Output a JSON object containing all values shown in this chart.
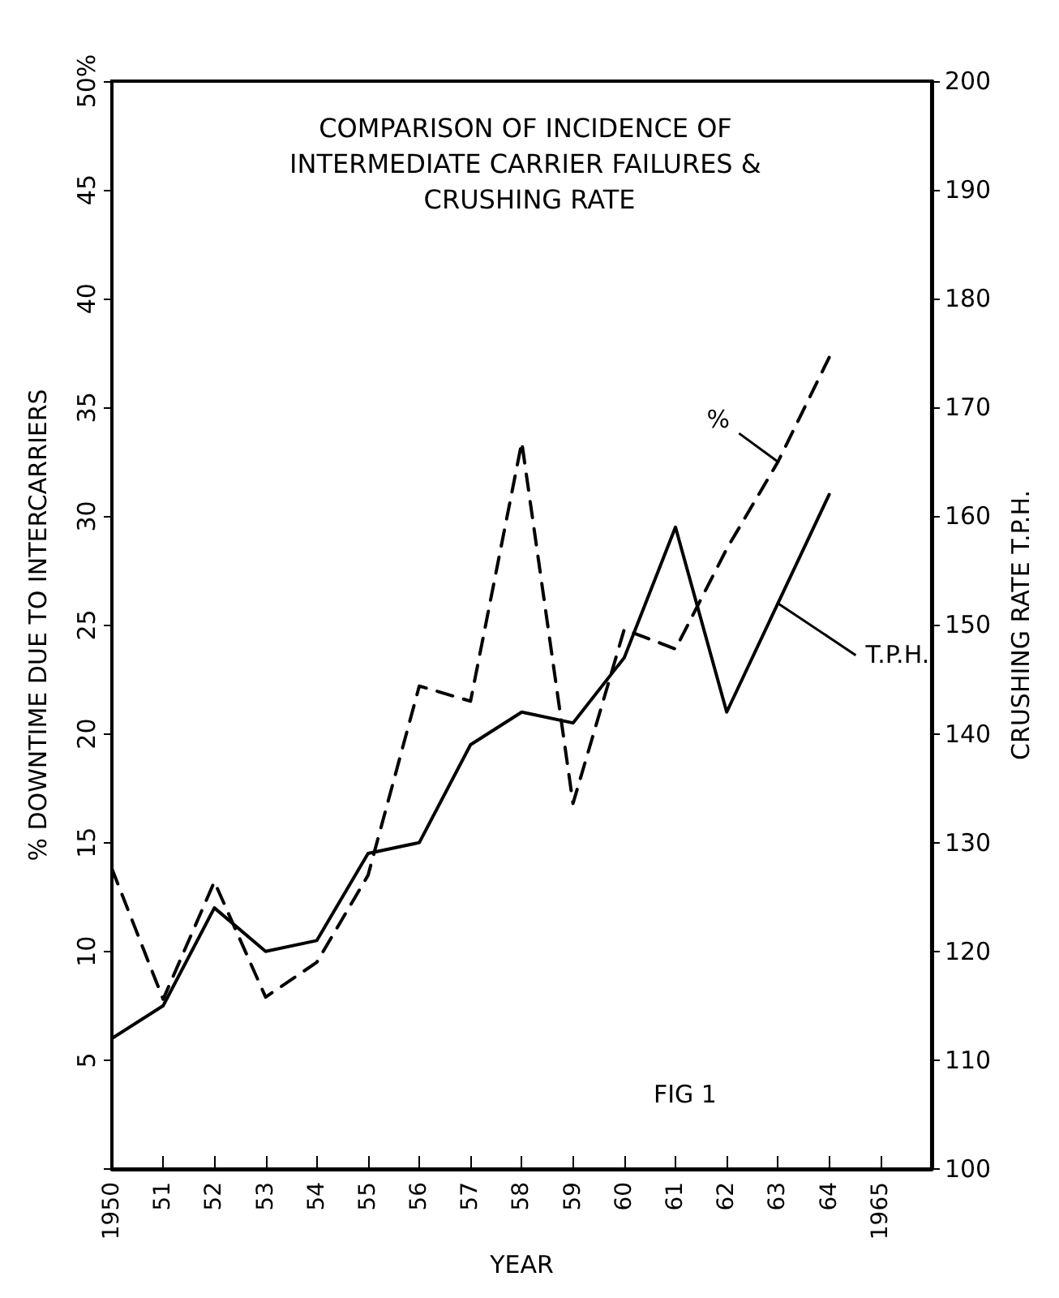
{
  "chart_data": {
    "type": "line",
    "title": "COMPARISON OF INCIDENCE OF INTERMEDIATE CARRIER FAILURES & CRUSHING RATE",
    "xlabel": "YEAR",
    "ylabel": "% DOWNTIME DUE TO INTERCARRIERS",
    "y2label": "CRUSHING RATE T.P.H.",
    "annotations": [
      "FIG 1"
    ],
    "x": [
      1950,
      1951,
      1952,
      1953,
      1954,
      1955,
      1956,
      1957,
      1958,
      1959,
      1960,
      1961,
      1962,
      1963,
      1964
    ],
    "series": [
      {
        "name": "%",
        "color": "#000000",
        "line_style": "dashed",
        "values": [
          13.8,
          7.8,
          13.2,
          7.9,
          9.5,
          13.5,
          22.2,
          21.5,
          33.4,
          16.8,
          24.8,
          23.9,
          28.5,
          32.5,
          37.3
        ]
      },
      {
        "name": "T.P.H.",
        "color": "#000000",
        "line_style": "solid",
        "axis": "y2",
        "values": [
          112,
          115,
          124,
          120,
          121,
          129,
          130,
          139,
          142,
          141,
          147,
          159,
          142,
          152,
          162
        ]
      }
    ],
    "xlim": [
      1950,
      1966
    ],
    "xticks": [
      {
        "value": 1950,
        "label": "1950"
      },
      {
        "value": 1951,
        "label": "51"
      },
      {
        "value": 1952,
        "label": "52"
      },
      {
        "value": 1953,
        "label": "53"
      },
      {
        "value": 1954,
        "label": "54"
      },
      {
        "value": 1955,
        "label": "55"
      },
      {
        "value": 1956,
        "label": "56"
      },
      {
        "value": 1957,
        "label": "57"
      },
      {
        "value": 1958,
        "label": "58"
      },
      {
        "value": 1959,
        "label": "59"
      },
      {
        "value": 1960,
        "label": "60"
      },
      {
        "value": 1961,
        "label": "61"
      },
      {
        "value": 1962,
        "label": "62"
      },
      {
        "value": 1963,
        "label": "63"
      },
      {
        "value": 1964,
        "label": "64"
      },
      {
        "value": 1965,
        "label": "1965"
      }
    ],
    "ylim": [
      0,
      50
    ],
    "yticks": [
      {
        "value": 0,
        "label": null
      },
      5,
      10,
      15,
      20,
      25,
      30,
      35,
      40,
      45,
      {
        "value": 50,
        "label": "50%"
      }
    ],
    "y2lim": [
      100,
      200
    ],
    "y2ticks": [
      100,
      110,
      120,
      130,
      140,
      150,
      160,
      170,
      180,
      190,
      200
    ],
    "grid": false,
    "legend": false,
    "marker": "none"
  }
}
